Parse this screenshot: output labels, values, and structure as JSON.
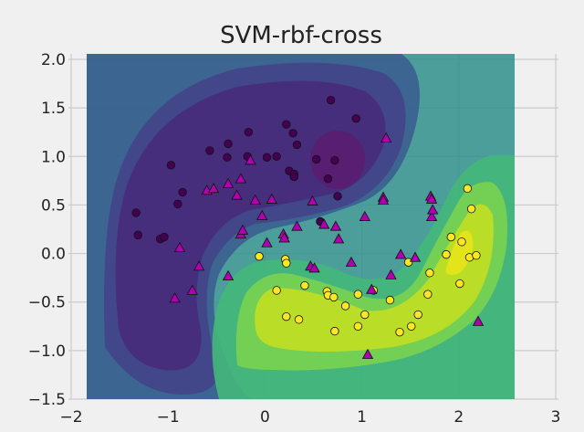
{
  "chart_data": {
    "type": "scatter",
    "title": "SVM-rbf-cross",
    "xlabel": "",
    "ylabel": "",
    "xlim": [
      -2.15,
      3.0
    ],
    "ylim": [
      -1.5,
      2.05
    ],
    "plot_region": {
      "x": [
        -1.83,
        2.6
      ],
      "y": [
        -1.5,
        2.05
      ]
    },
    "grid": true,
    "x_ticks": [
      -2,
      -1,
      0,
      1,
      2,
      3
    ],
    "x_tick_labels": [
      "−2",
      "−1",
      "0",
      "1",
      "2",
      "3"
    ],
    "y_ticks": [
      -1.5,
      -1.0,
      -0.5,
      0.0,
      0.5,
      1.0,
      1.5,
      2.0
    ],
    "y_tick_labels": [
      "−1.5",
      "−1.0",
      "−0.5",
      "0.0",
      "0.5",
      "1.0",
      "1.5",
      "2.0"
    ],
    "colors": {
      "class_0": "#440154",
      "class_1": "#fde725",
      "support_vector": "#b000b0",
      "background": "#f0f0f0"
    },
    "series": [
      {
        "marker": "circle",
        "color": "#440154",
        "points": [
          [
            -1.33,
            0.42
          ],
          [
            -1.31,
            0.19
          ],
          [
            -1.08,
            0.15
          ],
          [
            -1.04,
            0.17
          ],
          [
            -0.97,
            0.91
          ],
          [
            -0.9,
            0.51
          ],
          [
            -0.85,
            0.63
          ],
          [
            -0.57,
            1.06
          ],
          [
            -0.38,
            1.13
          ],
          [
            -0.39,
            0.99
          ],
          [
            -0.17,
            1.25
          ],
          [
            -0.18,
            1.0
          ],
          [
            0.02,
            0.99
          ],
          [
            0.12,
            1.0
          ],
          [
            0.22,
            1.33
          ],
          [
            0.29,
            1.24
          ],
          [
            0.33,
            1.12
          ],
          [
            0.25,
            0.85
          ],
          [
            0.3,
            0.82
          ],
          [
            0.3,
            0.79
          ],
          [
            0.53,
            0.97
          ],
          [
            0.68,
            1.58
          ],
          [
            0.72,
            0.96
          ],
          [
            0.65,
            0.77
          ],
          [
            0.75,
            0.59
          ],
          [
            0.94,
            1.39
          ],
          [
            0.57,
            0.33
          ]
        ]
      },
      {
        "marker": "circle",
        "color": "#fde725",
        "points": [
          [
            -0.06,
            -0.03
          ],
          [
            0.12,
            -0.38
          ],
          [
            0.21,
            -0.06
          ],
          [
            0.22,
            -0.1
          ],
          [
            0.22,
            -0.65
          ],
          [
            0.35,
            -0.68
          ],
          [
            0.41,
            -0.33
          ],
          [
            0.64,
            -0.39
          ],
          [
            0.65,
            -0.43
          ],
          [
            0.71,
            -0.45
          ],
          [
            0.72,
            -0.8
          ],
          [
            0.83,
            -0.54
          ],
          [
            0.96,
            -0.42
          ],
          [
            0.96,
            -0.75
          ],
          [
            1.03,
            -0.63
          ],
          [
            1.12,
            -0.38
          ],
          [
            1.29,
            -0.48
          ],
          [
            1.39,
            -0.81
          ],
          [
            1.48,
            -0.09
          ],
          [
            1.51,
            -0.75
          ],
          [
            1.58,
            -0.63
          ],
          [
            1.68,
            -0.42
          ],
          [
            1.7,
            -0.2
          ],
          [
            1.87,
            -0.01
          ],
          [
            1.92,
            0.17
          ],
          [
            2.01,
            -0.31
          ],
          [
            2.03,
            0.12
          ],
          [
            2.09,
            0.67
          ],
          [
            2.11,
            -0.04
          ],
          [
            2.13,
            0.46
          ],
          [
            2.18,
            -0.02
          ]
        ]
      },
      {
        "marker": "triangle",
        "color": "#b000b0",
        "points": [
          [
            -0.93,
            -0.46
          ],
          [
            -0.88,
            0.06
          ],
          [
            -0.75,
            -0.38
          ],
          [
            -0.68,
            -0.13
          ],
          [
            -0.6,
            0.65
          ],
          [
            -0.53,
            0.67
          ],
          [
            -0.38,
            0.72
          ],
          [
            -0.38,
            -0.23
          ],
          [
            -0.29,
            0.6
          ],
          [
            -0.25,
            0.77
          ],
          [
            -0.25,
            0.2
          ],
          [
            -0.23,
            0.24
          ],
          [
            -0.15,
            0.96
          ],
          [
            -0.1,
            0.55
          ],
          [
            -0.03,
            0.39
          ],
          [
            0.02,
            0.11
          ],
          [
            0.07,
            0.56
          ],
          [
            0.19,
            0.2
          ],
          [
            0.2,
            0.16
          ],
          [
            0.33,
            0.28
          ],
          [
            0.47,
            -0.13
          ],
          [
            0.49,
            0.54
          ],
          [
            0.51,
            -0.15
          ],
          [
            0.61,
            0.3
          ],
          [
            0.73,
            0.28
          ],
          [
            0.76,
            0.15
          ],
          [
            0.89,
            -0.09
          ],
          [
            1.03,
            0.38
          ],
          [
            1.06,
            -1.04
          ],
          [
            1.1,
            -0.37
          ],
          [
            1.22,
            0.58
          ],
          [
            1.22,
            0.55
          ],
          [
            1.25,
            1.19
          ],
          [
            1.3,
            -0.22
          ],
          [
            1.4,
            -0.01
          ],
          [
            1.55,
            -0.04
          ],
          [
            1.71,
            0.59
          ],
          [
            1.72,
            0.56
          ],
          [
            1.72,
            0.38
          ],
          [
            1.73,
            0.45
          ],
          [
            2.2,
            -0.7
          ]
        ]
      }
    ]
  }
}
